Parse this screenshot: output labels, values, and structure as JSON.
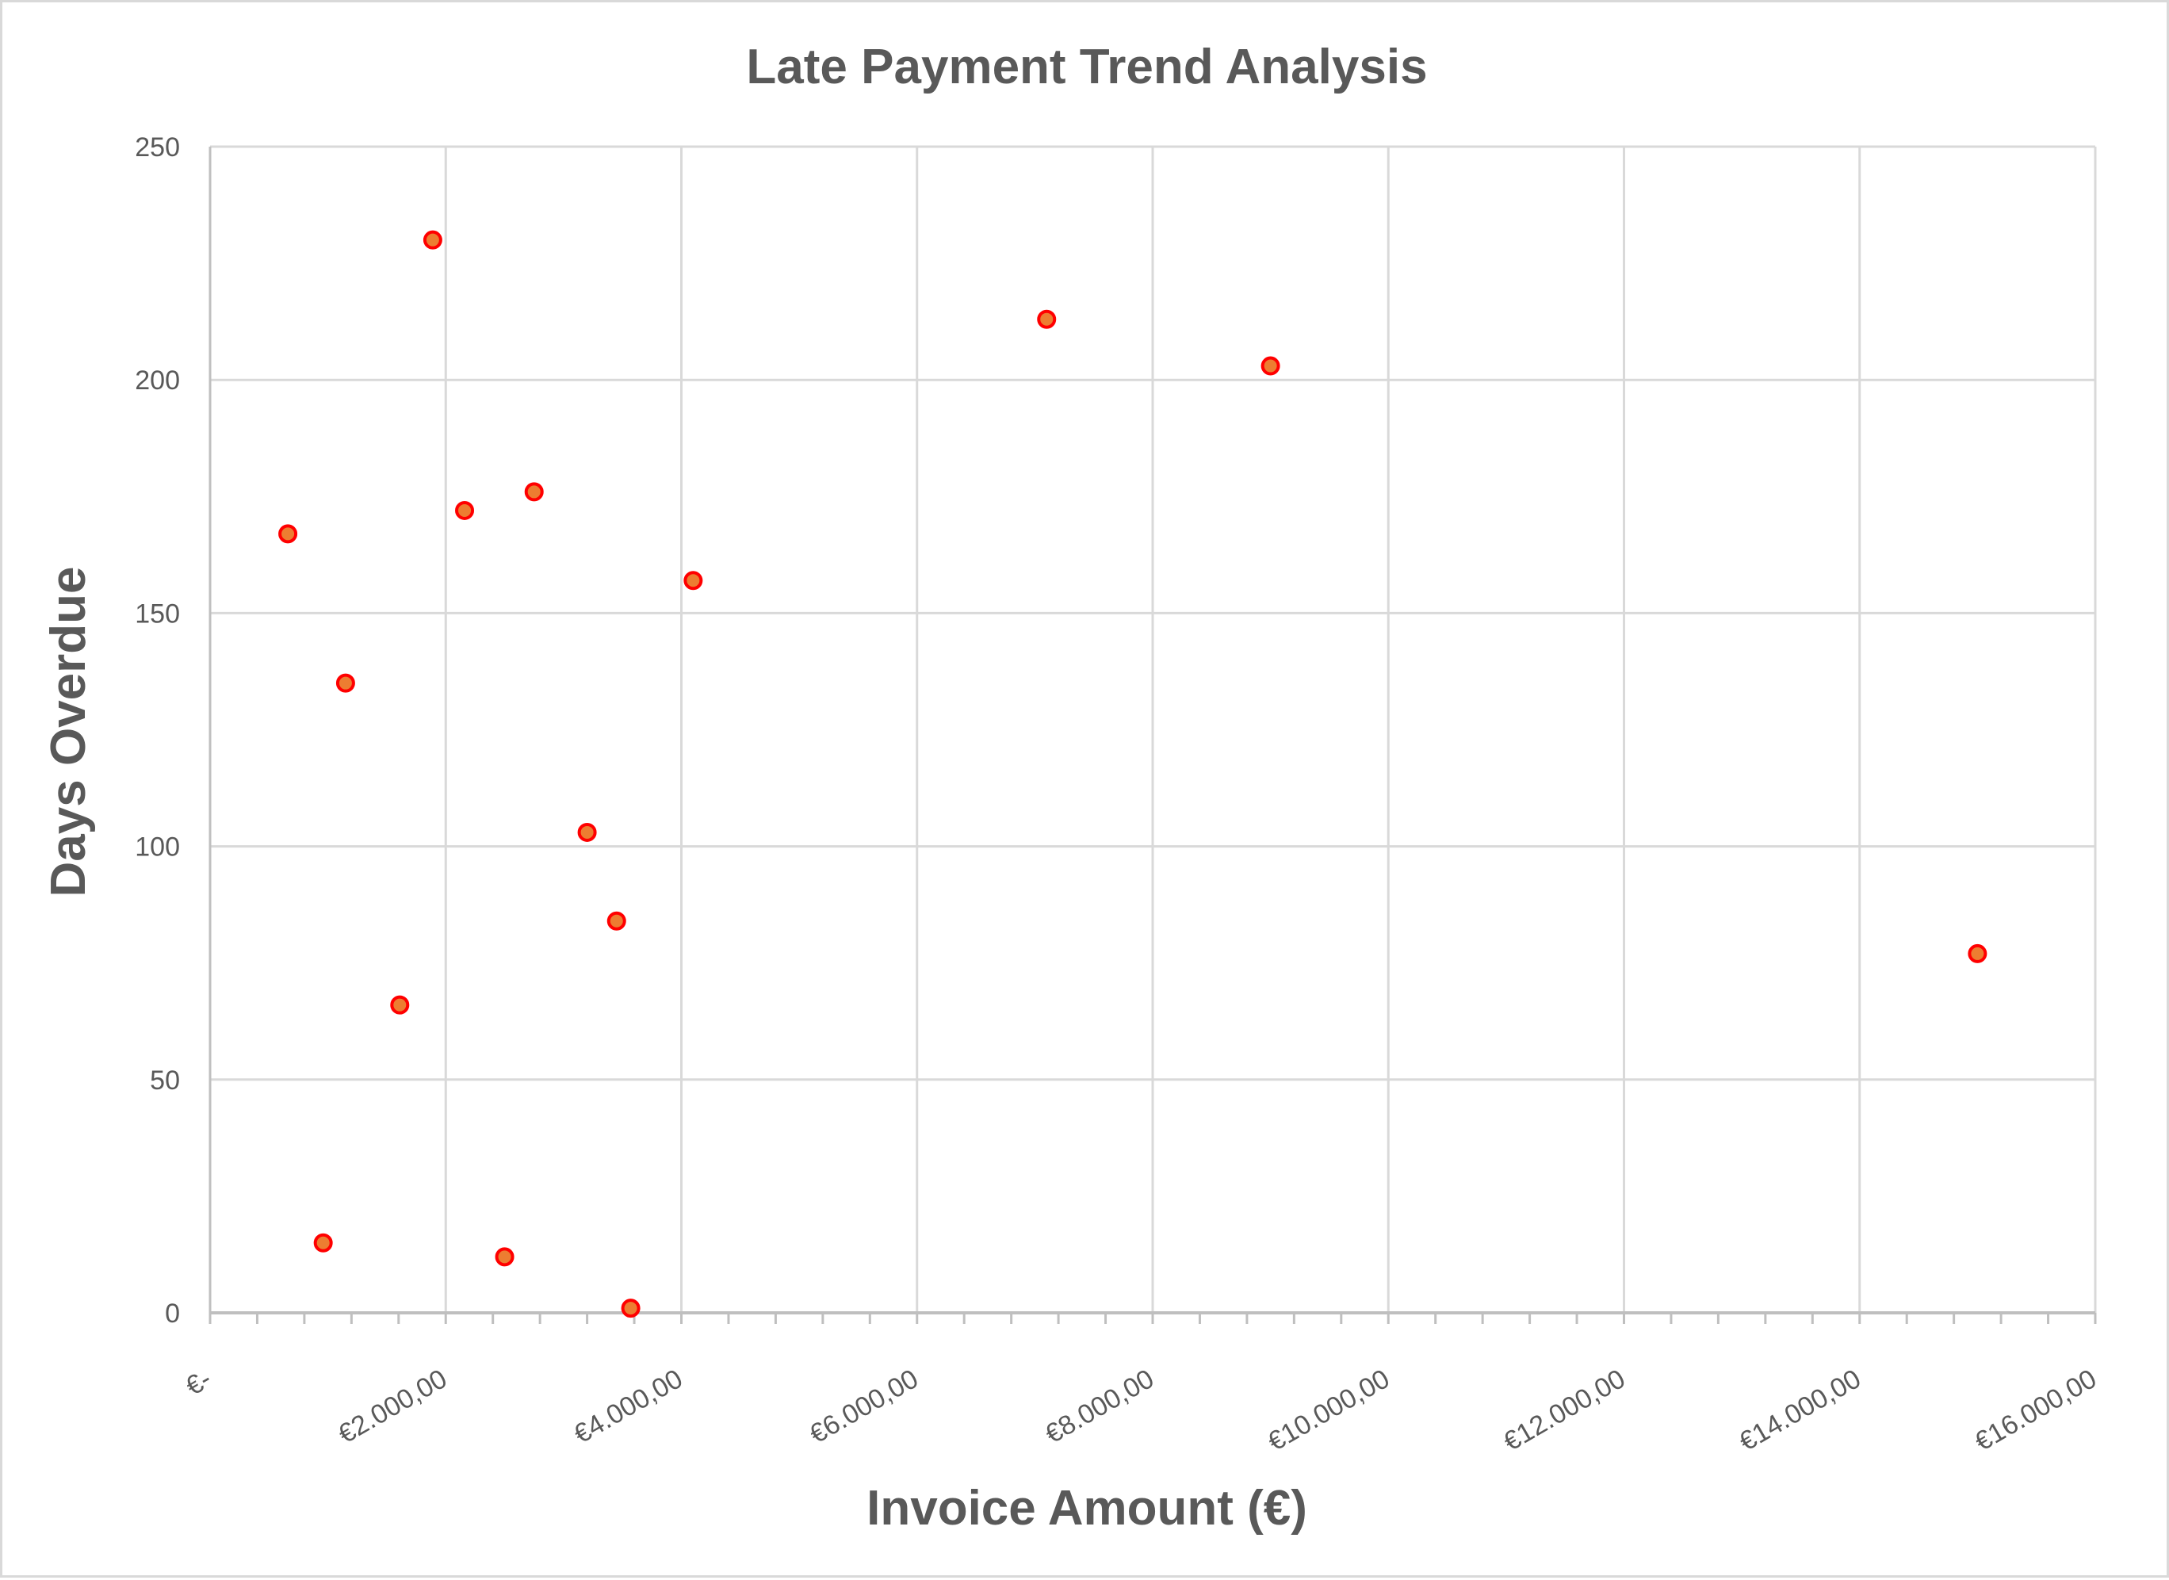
{
  "chart_data": {
    "type": "scatter",
    "title": "Late Payment Trend Analysis",
    "xlabel": "Invoice Amount (€)",
    "ylabel": "Days Overdue",
    "xlim": [
      0,
      16000
    ],
    "ylim": [
      0,
      250
    ],
    "grid": true,
    "legend": null,
    "x_ticks": [
      0,
      2000,
      4000,
      6000,
      8000,
      10000,
      12000,
      14000,
      16000
    ],
    "x_tick_labels": [
      "€-",
      "€2.000,00",
      "€4.000,00",
      "€6.000,00",
      "€8.000,00",
      "€10.000,00",
      "€12.000,00",
      "€14.000,00",
      "€16.000,00"
    ],
    "y_ticks": [
      0,
      50,
      100,
      150,
      200,
      250
    ],
    "y_tick_labels": [
      "0",
      "50",
      "100",
      "150",
      "200",
      "250"
    ],
    "marker": {
      "fill": "#ED7D31",
      "stroke": "#FF0000"
    },
    "series": [
      {
        "name": "Days Overdue",
        "points": [
          {
            "x": 660,
            "y": 167
          },
          {
            "x": 960,
            "y": 15
          },
          {
            "x": 1150,
            "y": 135
          },
          {
            "x": 1610,
            "y": 66
          },
          {
            "x": 1890,
            "y": 230
          },
          {
            "x": 2160,
            "y": 172
          },
          {
            "x": 2500,
            "y": 12
          },
          {
            "x": 2750,
            "y": 176
          },
          {
            "x": 3200,
            "y": 103
          },
          {
            "x": 3450,
            "y": 84
          },
          {
            "x": 3570,
            "y": 1
          },
          {
            "x": 4100,
            "y": 157
          },
          {
            "x": 7100,
            "y": 213
          },
          {
            "x": 9000,
            "y": 203
          },
          {
            "x": 15000,
            "y": 77
          }
        ]
      }
    ]
  }
}
